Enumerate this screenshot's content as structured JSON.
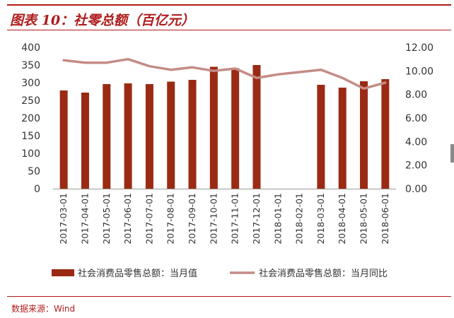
{
  "header": {
    "title": "图表 10：社零总额（百亿元）"
  },
  "footer": {
    "source": "数据来源：Wind"
  },
  "colors": {
    "accent": "#b01c1c",
    "bar": "#9b2a14",
    "line": "#c48c86"
  },
  "chart_data": {
    "type": "bar",
    "categories": [
      "2017-03-01",
      "2017-04-01",
      "2017-05-01",
      "2017-06-01",
      "2017-07-01",
      "2017-08-01",
      "2017-09-01",
      "2017-10-01",
      "2017-11-01",
      "2017-12-01",
      "2018-01-01",
      "2018-02-01",
      "2018-03-01",
      "2018-04-01",
      "2018-05-01",
      "2018-06-01"
    ],
    "series": [
      {
        "name": "社会消费品零售总额：当月值",
        "type": "bar",
        "axis": "left",
        "values": [
          278,
          272,
          296,
          298,
          296,
          303,
          308,
          345,
          341,
          350,
          null,
          null,
          294,
          286,
          304,
          310
        ]
      },
      {
        "name": "社会消费品零售总额：当月同比",
        "type": "line",
        "axis": "right",
        "values": [
          10.9,
          10.7,
          10.7,
          11.0,
          10.4,
          10.1,
          10.3,
          10.0,
          10.2,
          9.4,
          9.7,
          9.9,
          10.1,
          9.4,
          8.5,
          9.0
        ]
      }
    ],
    "yticks_left": [
      "400",
      "350",
      "300",
      "250",
      "200",
      "150",
      "100",
      "50",
      "0"
    ],
    "yticks_right": [
      "12.00",
      "10.00",
      "8.00",
      "6.00",
      "4.00",
      "2.00",
      "0.00"
    ],
    "ylim_left": [
      0,
      400
    ],
    "ylim_right": [
      0,
      12
    ],
    "grid": false,
    "legend": "bottom"
  }
}
